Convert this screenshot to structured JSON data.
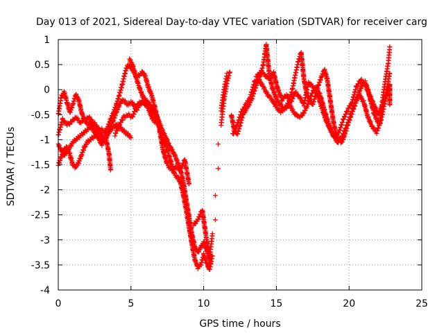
{
  "chart_data": {
    "type": "scatter",
    "title": "Day 013 of 2021, Sidereal Day-to-day VTEC variation (SDTVAR) for receiver carg",
    "xlabel": "GPS time / hours",
    "ylabel": "SDTVAR / TECUs",
    "xlim": [
      0,
      25
    ],
    "ylim": [
      -4,
      1
    ],
    "xticks": [
      0,
      5,
      10,
      15,
      20,
      25
    ],
    "yticks": [
      1,
      0.5,
      0,
      -0.5,
      -1,
      -1.5,
      -2,
      -2.5,
      -3,
      -3.5,
      -4
    ],
    "grid": true,
    "marker": "+",
    "color": "#ff0000",
    "series": [
      {
        "values": [
          [
            0.0,
            -0.5
          ],
          [
            0.2,
            -0.15
          ],
          [
            0.4,
            -0.05
          ],
          [
            0.6,
            -0.25
          ],
          [
            0.8,
            -0.45
          ],
          [
            1.0,
            -0.3
          ],
          [
            1.2,
            -0.1
          ],
          [
            1.4,
            -0.2
          ],
          [
            1.6,
            -0.45
          ],
          [
            1.8,
            -0.6
          ],
          [
            2.0,
            -0.7
          ],
          [
            2.2,
            -0.65
          ],
          [
            2.4,
            -0.75
          ],
          [
            2.6,
            -0.85
          ],
          [
            2.8,
            -0.9
          ],
          [
            3.0,
            -0.8
          ],
          [
            3.2,
            -0.85
          ],
          [
            3.4,
            -0.75
          ],
          [
            3.6,
            -0.6
          ],
          [
            3.8,
            -0.45
          ],
          [
            4.0,
            -0.3
          ],
          [
            4.2,
            -0.1
          ],
          [
            4.4,
            0.1
          ],
          [
            4.6,
            0.35
          ],
          [
            4.8,
            0.5
          ],
          [
            5.0,
            0.45
          ],
          [
            5.2,
            0.35
          ],
          [
            5.4,
            0.25
          ],
          [
            5.6,
            0.3
          ],
          [
            5.8,
            0.35
          ],
          [
            6.0,
            0.25
          ],
          [
            6.2,
            0.05
          ],
          [
            6.4,
            -0.1
          ],
          [
            6.6,
            -0.3
          ],
          [
            6.8,
            -0.55
          ],
          [
            7.0,
            -0.8
          ],
          [
            7.2,
            -1.0
          ],
          [
            7.4,
            -1.1
          ],
          [
            7.6,
            -1.3
          ],
          [
            7.8,
            -1.5
          ],
          [
            8.0,
            -1.7
          ],
          [
            8.2,
            -1.75
          ],
          [
            8.4,
            -1.85
          ],
          [
            8.6,
            -2.1
          ],
          [
            8.8,
            -2.4
          ],
          [
            9.0,
            -2.75
          ],
          [
            9.2,
            -3.1
          ],
          [
            9.4,
            -3.4
          ],
          [
            9.6,
            -3.55
          ],
          [
            9.8,
            -3.5
          ],
          [
            10.0,
            -3.3
          ],
          [
            10.2,
            -3.45
          ],
          [
            10.4,
            -3.6
          ],
          [
            10.6,
            -3.3
          ],
          [
            10.8,
            -2.6
          ],
          [
            11.0,
            -1.6
          ],
          [
            11.2,
            -0.7
          ],
          [
            11.4,
            -0.2
          ],
          [
            11.6,
            0.15
          ],
          [
            11.8,
            0.35
          ]
        ]
      },
      {
        "values": [
          [
            0.0,
            -1.1
          ],
          [
            0.2,
            -1.2
          ],
          [
            0.4,
            -1.3
          ],
          [
            0.6,
            -1.25
          ],
          [
            0.8,
            -1.15
          ],
          [
            1.0,
            -1.05
          ],
          [
            1.2,
            -1.0
          ],
          [
            1.4,
            -0.95
          ],
          [
            1.6,
            -0.9
          ],
          [
            1.8,
            -0.85
          ],
          [
            2.0,
            -0.8
          ],
          [
            2.2,
            -0.75
          ],
          [
            2.4,
            -0.8
          ],
          [
            2.6,
            -0.9
          ],
          [
            2.8,
            -0.95
          ],
          [
            3.0,
            -1.0
          ],
          [
            3.2,
            -0.95
          ],
          [
            3.4,
            -0.85
          ],
          [
            3.6,
            -0.75
          ],
          [
            3.8,
            -0.6
          ],
          [
            4.0,
            -0.45
          ],
          [
            4.2,
            -0.3
          ],
          [
            4.4,
            -0.2
          ],
          [
            4.6,
            -0.25
          ],
          [
            4.8,
            -0.3
          ],
          [
            5.0,
            -0.25
          ],
          [
            5.2,
            -0.3
          ],
          [
            5.4,
            -0.4
          ],
          [
            5.6,
            -0.3
          ],
          [
            5.8,
            -0.25
          ],
          [
            6.0,
            -0.3
          ],
          [
            6.2,
            -0.35
          ],
          [
            6.4,
            -0.4
          ],
          [
            6.6,
            -0.45
          ],
          [
            6.8,
            -0.55
          ],
          [
            7.0,
            -0.7
          ],
          [
            7.2,
            -0.85
          ],
          [
            7.4,
            -0.95
          ],
          [
            7.6,
            -1.1
          ],
          [
            7.8,
            -1.2
          ],
          [
            8.0,
            -1.3
          ],
          [
            8.2,
            -1.45
          ],
          [
            8.4,
            -1.6
          ],
          [
            8.6,
            -1.85
          ],
          [
            8.8,
            -2.2
          ],
          [
            9.0,
            -2.55
          ],
          [
            9.2,
            -2.9
          ],
          [
            9.4,
            -3.15
          ],
          [
            9.6,
            -3.25
          ],
          [
            9.8,
            -3.15
          ],
          [
            10.0,
            -3.05
          ],
          [
            10.2,
            -3.2
          ],
          [
            10.4,
            -3.35
          ],
          [
            10.6,
            -2.9
          ],
          [
            10.8,
            -2.1
          ],
          [
            11.0,
            -1.1
          ],
          [
            11.2,
            -0.4
          ],
          [
            11.4,
            0.0
          ],
          [
            11.6,
            0.3
          ]
        ]
      },
      {
        "values": [
          [
            0.0,
            -0.9
          ],
          [
            0.3,
            -0.6
          ],
          [
            0.6,
            -0.7
          ],
          [
            0.9,
            -0.65
          ],
          [
            1.2,
            -0.55
          ],
          [
            1.5,
            -0.65
          ],
          [
            1.8,
            -0.6
          ],
          [
            2.1,
            -0.55
          ],
          [
            2.4,
            -0.65
          ],
          [
            2.7,
            -0.75
          ],
          [
            3.0,
            -0.9
          ],
          [
            3.3,
            -1.0
          ],
          [
            3.5,
            -1.3
          ],
          [
            3.6,
            -1.6
          ],
          [
            3.9,
            -0.9
          ],
          [
            4.2,
            -0.7
          ],
          [
            4.5,
            -0.55
          ],
          [
            4.8,
            -0.5
          ],
          [
            5.1,
            -0.55
          ],
          [
            5.4,
            -0.3
          ],
          [
            5.7,
            -0.25
          ],
          [
            6.0,
            -0.2
          ],
          [
            6.3,
            -0.3
          ],
          [
            6.6,
            -0.45
          ],
          [
            6.9,
            -0.7
          ],
          [
            7.2,
            -1.2
          ],
          [
            7.5,
            -1.5
          ],
          [
            7.8,
            -1.6
          ],
          [
            8.1,
            -1.55
          ],
          [
            8.4,
            -1.6
          ],
          [
            8.7,
            -1.4
          ],
          [
            9.0,
            -1.9
          ],
          [
            9.3,
            -2.7
          ],
          [
            9.6,
            -2.6
          ],
          [
            9.9,
            -2.4
          ],
          [
            10.2,
            -3.0
          ],
          [
            10.5,
            -3.5
          ]
        ]
      },
      {
        "values": [
          [
            0.0,
            -1.5
          ],
          [
            0.2,
            -1.35
          ],
          [
            0.4,
            -1.2
          ],
          [
            0.6,
            -1.15
          ],
          [
            0.8,
            -1.3
          ],
          [
            1.0,
            -1.5
          ],
          [
            1.2,
            -1.55
          ],
          [
            1.4,
            -1.45
          ],
          [
            1.6,
            -1.3
          ],
          [
            1.8,
            -1.15
          ],
          [
            2.0,
            -1.05
          ],
          [
            2.2,
            -1.0
          ],
          [
            2.4,
            -0.95
          ],
          [
            2.6,
            -0.9
          ],
          [
            2.8,
            -1.0
          ],
          [
            3.0,
            -1.1
          ],
          [
            3.2,
            -1.0
          ],
          [
            3.4,
            -0.9
          ],
          [
            3.6,
            -0.8
          ],
          [
            3.8,
            -0.75
          ],
          [
            4.0,
            -0.7
          ],
          [
            4.2,
            -0.75
          ],
          [
            4.4,
            -0.8
          ],
          [
            4.6,
            -0.85
          ],
          [
            4.8,
            -0.9
          ],
          [
            5.0,
            -0.95
          ],
          [
            4.9,
            0.6
          ],
          [
            5.1,
            0.5
          ],
          [
            5.3,
            0.3
          ],
          [
            5.5,
            0.1
          ],
          [
            5.7,
            -0.05
          ],
          [
            5.9,
            -0.2
          ],
          [
            6.1,
            -0.3
          ],
          [
            6.3,
            -0.45
          ],
          [
            6.5,
            -0.6
          ],
          [
            6.7,
            -0.65
          ]
        ]
      },
      {
        "values": [
          [
            11.9,
            -0.5
          ],
          [
            12.1,
            -0.8
          ],
          [
            12.3,
            -0.9
          ],
          [
            12.5,
            -0.7
          ],
          [
            12.7,
            -0.5
          ],
          [
            12.9,
            -0.4
          ],
          [
            13.1,
            -0.3
          ],
          [
            13.3,
            -0.2
          ],
          [
            13.5,
            0.0
          ],
          [
            13.7,
            0.15
          ],
          [
            13.9,
            0.3
          ],
          [
            14.1,
            0.5
          ],
          [
            14.2,
            0.7
          ],
          [
            14.3,
            0.9
          ],
          [
            14.5,
            0.35
          ],
          [
            14.7,
            0.05
          ],
          [
            14.9,
            -0.1
          ],
          [
            15.1,
            -0.25
          ],
          [
            15.3,
            -0.3
          ],
          [
            15.5,
            -0.4
          ],
          [
            15.7,
            -0.35
          ],
          [
            15.9,
            -0.2
          ],
          [
            16.1,
            0.0
          ],
          [
            16.3,
            0.3
          ],
          [
            16.5,
            0.55
          ],
          [
            16.7,
            0.75
          ],
          [
            16.9,
            0.2
          ],
          [
            17.1,
            -0.1
          ],
          [
            17.3,
            -0.2
          ],
          [
            17.5,
            -0.3
          ],
          [
            17.7,
            -0.1
          ],
          [
            17.9,
            0.1
          ],
          [
            18.1,
            0.25
          ],
          [
            18.3,
            0.4
          ],
          [
            18.5,
            0.2
          ],
          [
            18.7,
            -0.2
          ],
          [
            18.9,
            -0.6
          ],
          [
            19.1,
            -0.9
          ],
          [
            19.3,
            -1.0
          ],
          [
            19.5,
            -1.05
          ],
          [
            19.7,
            -0.9
          ],
          [
            19.9,
            -0.7
          ],
          [
            20.1,
            -0.5
          ],
          [
            20.3,
            -0.35
          ],
          [
            20.5,
            -0.2
          ],
          [
            20.7,
            -0.05
          ],
          [
            20.9,
            0.1
          ],
          [
            21.1,
            0.15
          ],
          [
            21.3,
            0.0
          ],
          [
            21.5,
            -0.25
          ],
          [
            21.7,
            -0.45
          ],
          [
            21.9,
            -0.6
          ],
          [
            22.1,
            -0.7
          ],
          [
            22.3,
            -0.2
          ],
          [
            22.5,
            0.2
          ],
          [
            22.7,
            0.55
          ],
          [
            22.8,
            0.85
          ]
        ]
      },
      {
        "values": [
          [
            12.0,
            -0.9
          ],
          [
            12.3,
            -0.7
          ],
          [
            12.6,
            -0.45
          ],
          [
            12.9,
            -0.3
          ],
          [
            13.2,
            -0.15
          ],
          [
            13.5,
            0.15
          ],
          [
            13.8,
            0.2
          ],
          [
            14.1,
            0.05
          ],
          [
            14.4,
            -0.1
          ],
          [
            14.7,
            -0.2
          ],
          [
            15.0,
            -0.35
          ],
          [
            15.3,
            -0.45
          ],
          [
            15.6,
            -0.35
          ],
          [
            15.9,
            -0.3
          ],
          [
            16.2,
            -0.45
          ],
          [
            16.5,
            -0.55
          ],
          [
            16.8,
            -0.5
          ],
          [
            17.1,
            -0.35
          ],
          [
            17.4,
            -0.1
          ],
          [
            17.7,
            0.05
          ],
          [
            18.0,
            -0.1
          ],
          [
            18.3,
            -0.4
          ],
          [
            18.6,
            -0.7
          ],
          [
            18.9,
            -0.9
          ],
          [
            19.2,
            -1.05
          ],
          [
            19.5,
            -0.95
          ],
          [
            19.8,
            -0.75
          ],
          [
            20.1,
            -0.55
          ],
          [
            20.4,
            -0.3
          ],
          [
            20.7,
            -0.1
          ],
          [
            21.0,
            -0.25
          ],
          [
            21.3,
            -0.55
          ],
          [
            21.6,
            -0.75
          ],
          [
            21.9,
            -0.85
          ],
          [
            22.2,
            -0.6
          ],
          [
            22.5,
            -0.2
          ],
          [
            22.8,
            0.1
          ],
          [
            22.8,
            -0.3
          ]
        ]
      },
      {
        "values": [
          [
            13.6,
            0.25
          ],
          [
            13.9,
            0.35
          ],
          [
            14.2,
            0.3
          ],
          [
            14.5,
            0.2
          ],
          [
            14.8,
            0.35
          ],
          [
            15.1,
            0.0
          ],
          [
            15.4,
            -0.2
          ],
          [
            15.7,
            -0.1
          ],
          [
            16.0,
            -0.25
          ],
          [
            16.3,
            -0.05
          ],
          [
            16.6,
            -0.15
          ],
          [
            16.9,
            -0.3
          ],
          [
            17.2,
            0.15
          ],
          [
            17.5,
            0.05
          ],
          [
            17.8,
            -0.05
          ],
          [
            18.1,
            -0.35
          ],
          [
            18.4,
            -0.6
          ],
          [
            18.7,
            -0.8
          ],
          [
            19.0,
            -0.95
          ],
          [
            19.3,
            -0.85
          ],
          [
            19.6,
            -0.6
          ],
          [
            19.9,
            -0.4
          ],
          [
            20.2,
            -0.25
          ],
          [
            20.5,
            0.05
          ],
          [
            20.8,
            0.2
          ],
          [
            21.1,
            0.1
          ],
          [
            21.4,
            -0.1
          ],
          [
            21.7,
            -0.3
          ],
          [
            22.0,
            -0.5
          ],
          [
            22.3,
            -0.3
          ],
          [
            22.6,
            0.0
          ],
          [
            22.8,
            0.35
          ]
        ]
      }
    ]
  }
}
